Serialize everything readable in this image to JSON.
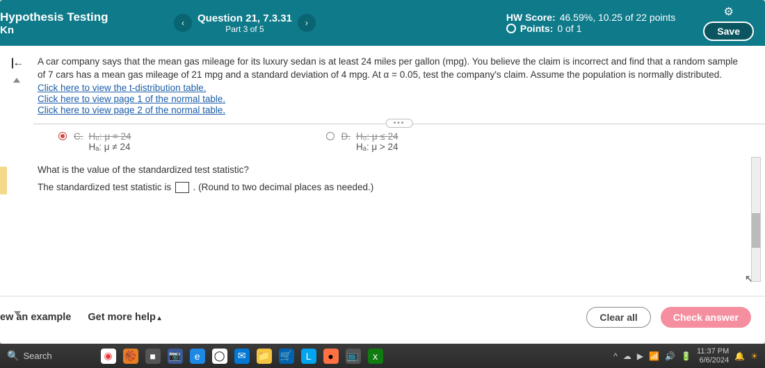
{
  "header": {
    "title_line1": "Hypothesis Testing",
    "title_line2": "Kn",
    "question_title": "Question 21, 7.3.31",
    "question_part": "Part 3 of 5",
    "hw_score_label": "HW Score:",
    "hw_score_value": "46.59%, 10.25 of 22 points",
    "points_label": "Points:",
    "points_value": "0 of 1",
    "save_label": "Save"
  },
  "problem": {
    "text": "A car company says that the mean gas mileage for its luxury sedan is at least 24 miles per gallon (mpg). You believe the claim is incorrect and find that a random sample of 7 cars has a mean gas mileage of 21 mpg and a standard deviation of 4 mpg. At α = 0.05, test the company's claim. Assume the population is normally distributed.",
    "link1": "Click here to view the t-distribution table.",
    "link2": "Click here to view page 1 of the normal table.",
    "link3": "Click here to view page 2 of the normal table."
  },
  "options": {
    "c_letter": "C.",
    "c_h0": "H₀: μ = 24",
    "c_ha": "Hₐ: μ ≠ 24",
    "d_letter": "D.",
    "d_h0": "H₀: μ ≤ 24",
    "d_ha": "Hₐ: μ > 24"
  },
  "subquestion": {
    "prompt": "What is the value of the standardized test statistic?",
    "answer_prefix": "The standardized test statistic is",
    "answer_suffix": ". (Round to two decimal places as needed.)"
  },
  "footer": {
    "example_label": "ew an example",
    "help_label": "Get more help",
    "clear_label": "Clear all",
    "check_label": "Check answer"
  },
  "taskbar": {
    "search_label": "Search",
    "time": "11:37 PM",
    "date": "6/6/2024"
  },
  "colors": {
    "header_bg": "#0e7a8a",
    "save_bg": "#0a5560",
    "check_bg": "#f58fa0",
    "link": "#1a5da8"
  }
}
